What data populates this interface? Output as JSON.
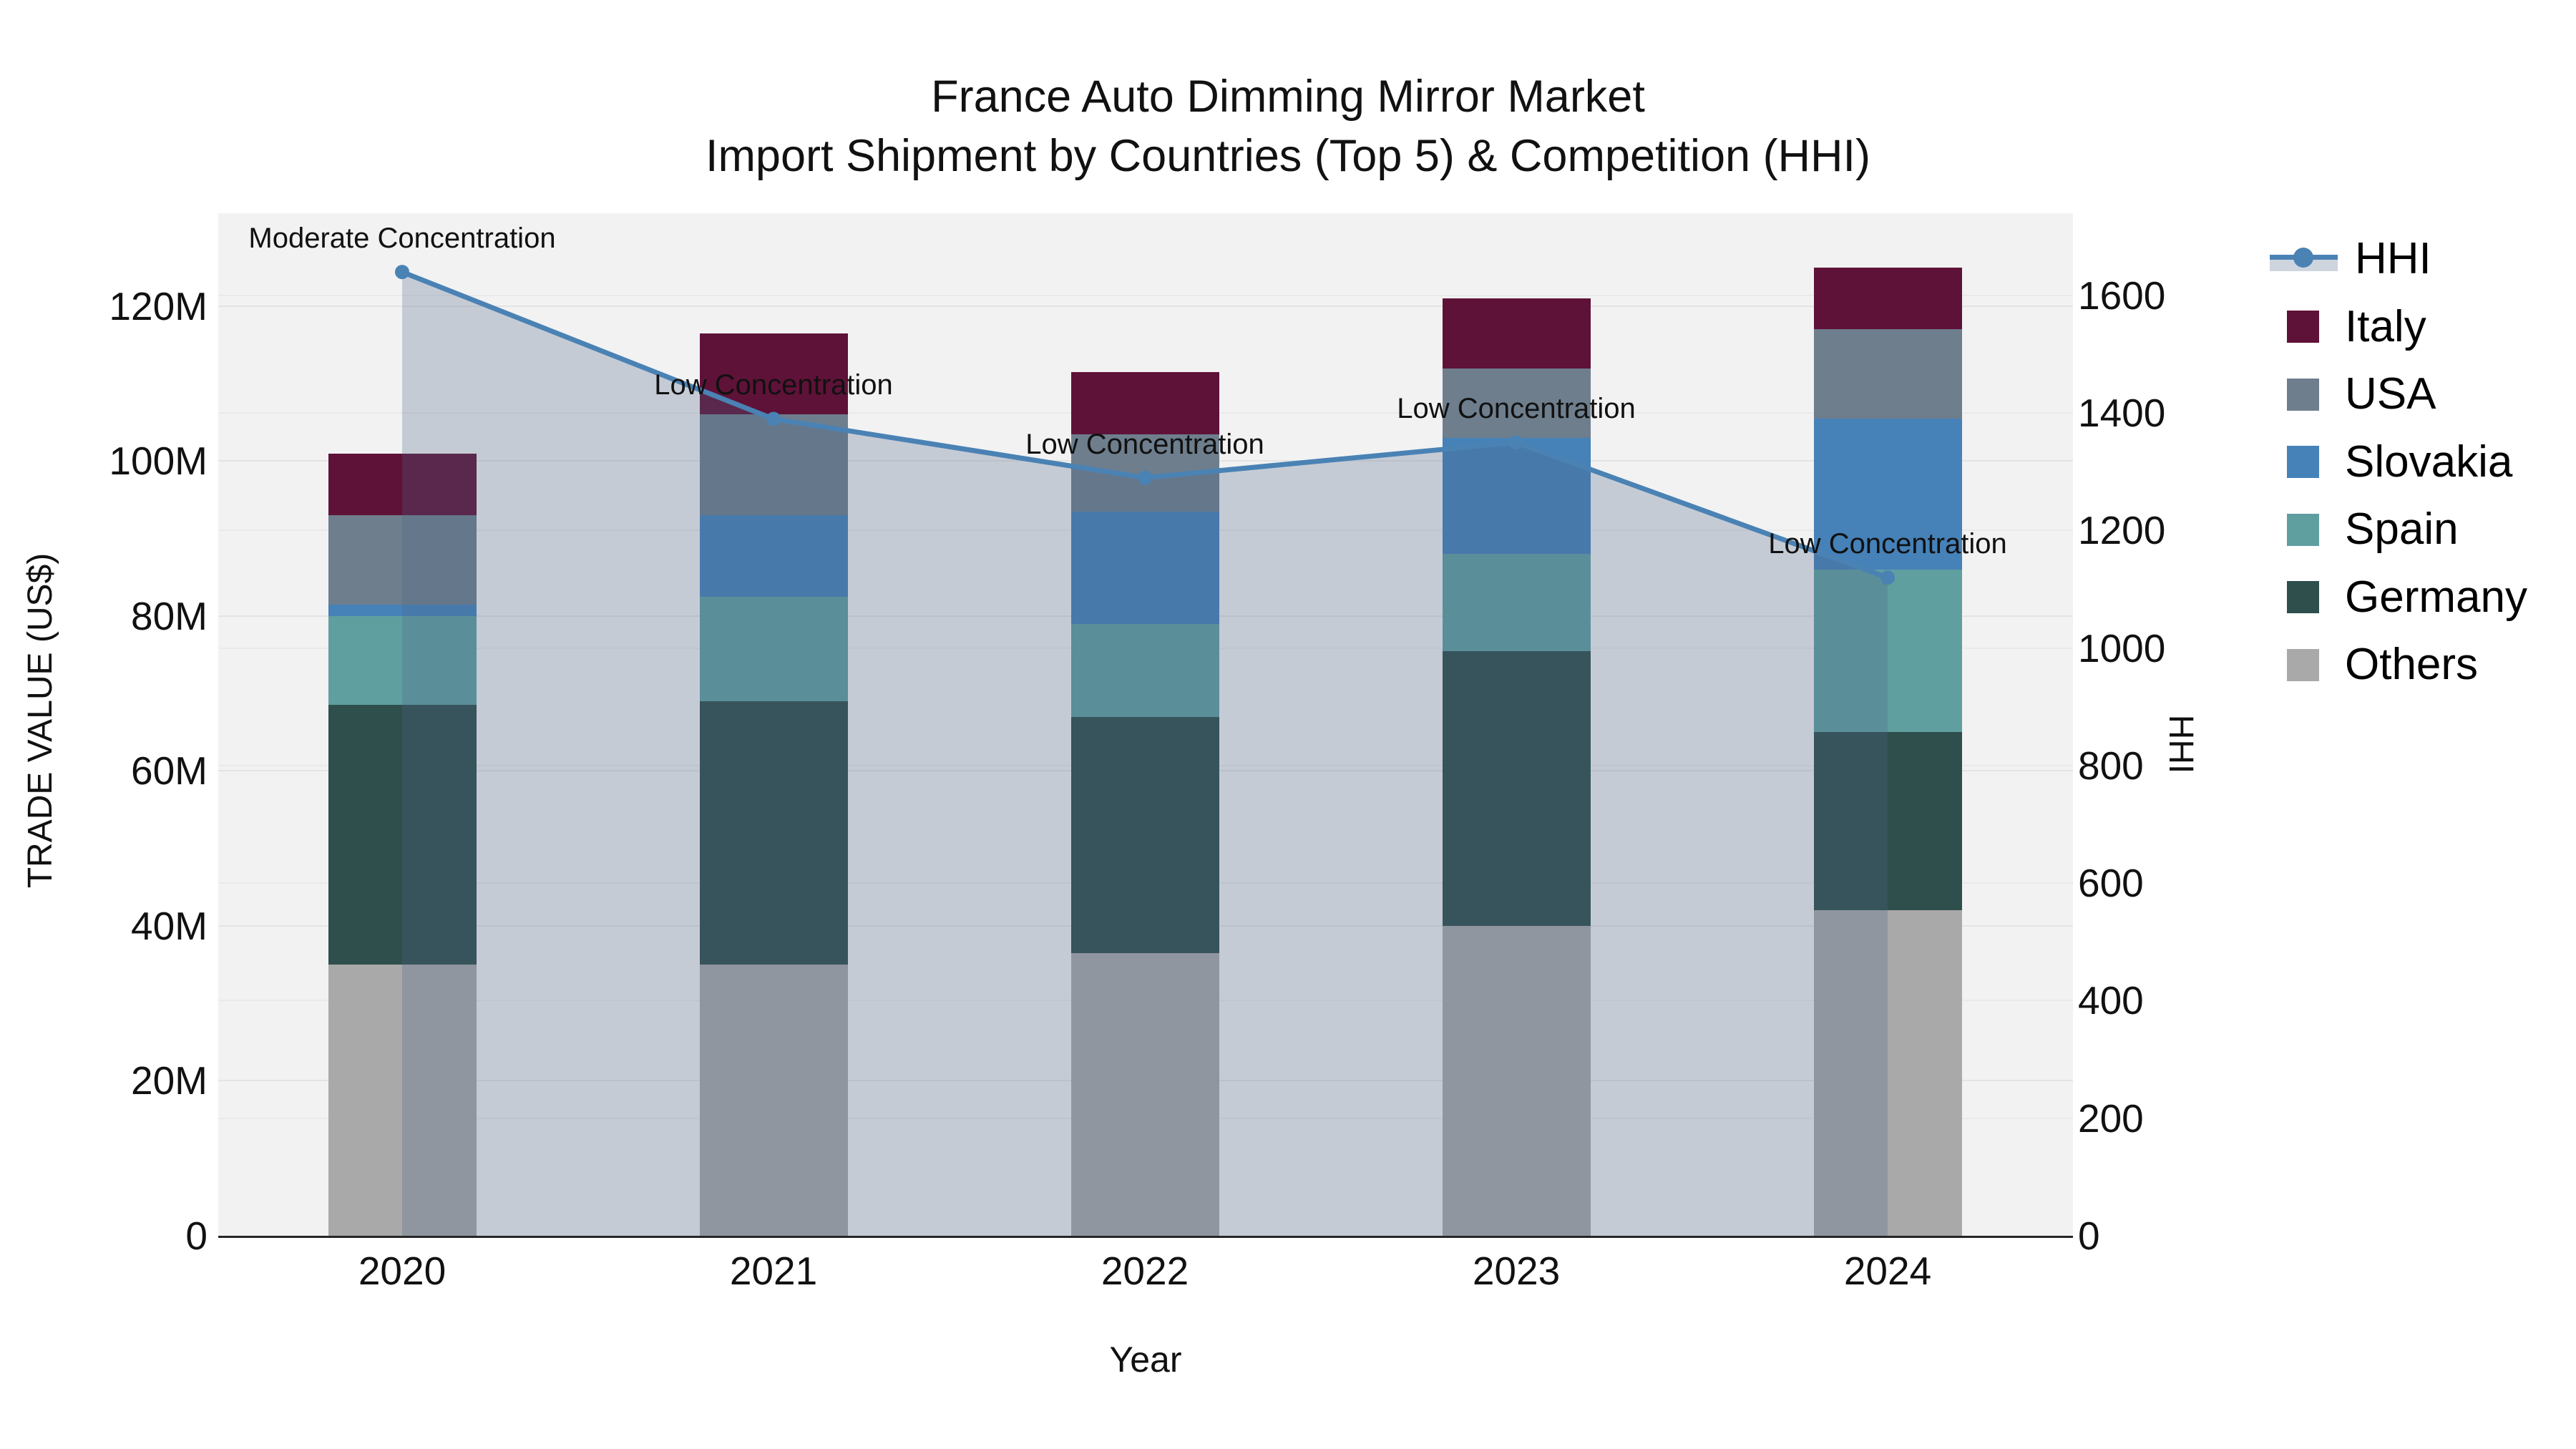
{
  "title": {
    "line1": "France Auto Dimming Mirror Market",
    "line2": "Import Shipment by Countries (Top 5) & Competition (HHI)"
  },
  "axes": {
    "x_label": "Year",
    "y_left_label": "TRADE VALUE (US$)",
    "y_right_label": "HHI",
    "y_left_tick_labels": [
      "0",
      "20M",
      "40M",
      "60M",
      "80M",
      "100M",
      "120M"
    ],
    "y_left_tick_values": [
      0,
      20,
      40,
      60,
      80,
      100,
      120
    ],
    "y_right_tick_labels": [
      "0",
      "200",
      "400",
      "600",
      "800",
      "1000",
      "1200",
      "1400",
      "1600"
    ],
    "y_right_tick_values": [
      0,
      200,
      400,
      600,
      800,
      1000,
      1200,
      1400,
      1600
    ]
  },
  "chart_data": {
    "type": "stacked-bar+line",
    "unit_left": "Trade value in million US$",
    "categories": [
      "2020",
      "2021",
      "2022",
      "2023",
      "2024"
    ],
    "series": [
      {
        "name": "Others",
        "color": "#a9a9a9",
        "values": [
          35,
          35,
          36.5,
          40,
          42
        ]
      },
      {
        "name": "Germany",
        "color": "#2f4f4c",
        "values": [
          33.5,
          34,
          30.5,
          35.5,
          23
        ]
      },
      {
        "name": "Spain",
        "color": "#5f9fa0",
        "values": [
          11.5,
          13.5,
          12,
          12.5,
          21
        ]
      },
      {
        "name": "Slovakia",
        "color": "#4681b8",
        "values": [
          1.5,
          10.5,
          14.5,
          15,
          19.5
        ]
      },
      {
        "name": "USA",
        "color": "#6e7e8d",
        "values": [
          11.5,
          13,
          10,
          9,
          11.5
        ]
      },
      {
        "name": "Italy",
        "color": "#5f1238",
        "values": [
          8,
          10.5,
          8,
          9,
          8
        ]
      }
    ],
    "line_series": {
      "name": "HHI",
      "color": "#4a82b4",
      "area_fill": "rgba(79,101,138,0.27)",
      "values": [
        1640,
        1390,
        1290,
        1350,
        1120
      ]
    },
    "annotations": [
      {
        "category": "2020",
        "text": "Moderate Concentration"
      },
      {
        "category": "2021",
        "text": "Low Concentration"
      },
      {
        "category": "2022",
        "text": "Low Concentration"
      },
      {
        "category": "2023",
        "text": "Low Concentration"
      },
      {
        "category": "2024",
        "text": "Low Concentration"
      }
    ],
    "ylim_left_millions": [
      0,
      132
    ],
    "ylim_right": [
      0,
      1740
    ],
    "grid": true,
    "legend_position": "right"
  },
  "legend": {
    "items": [
      {
        "label": "HHI",
        "swatch": "line",
        "color": "#4a82b4"
      },
      {
        "label": "Italy",
        "swatch": "square",
        "color": "#5f1238"
      },
      {
        "label": "USA",
        "swatch": "square",
        "color": "#6e7e8d"
      },
      {
        "label": "Slovakia",
        "swatch": "square",
        "color": "#4681b8"
      },
      {
        "label": "Spain",
        "swatch": "square",
        "color": "#5f9fa0"
      },
      {
        "label": "Germany",
        "swatch": "square",
        "color": "#2f4f4c"
      },
      {
        "label": "Others",
        "swatch": "square",
        "color": "#a9a9a9"
      }
    ]
  }
}
